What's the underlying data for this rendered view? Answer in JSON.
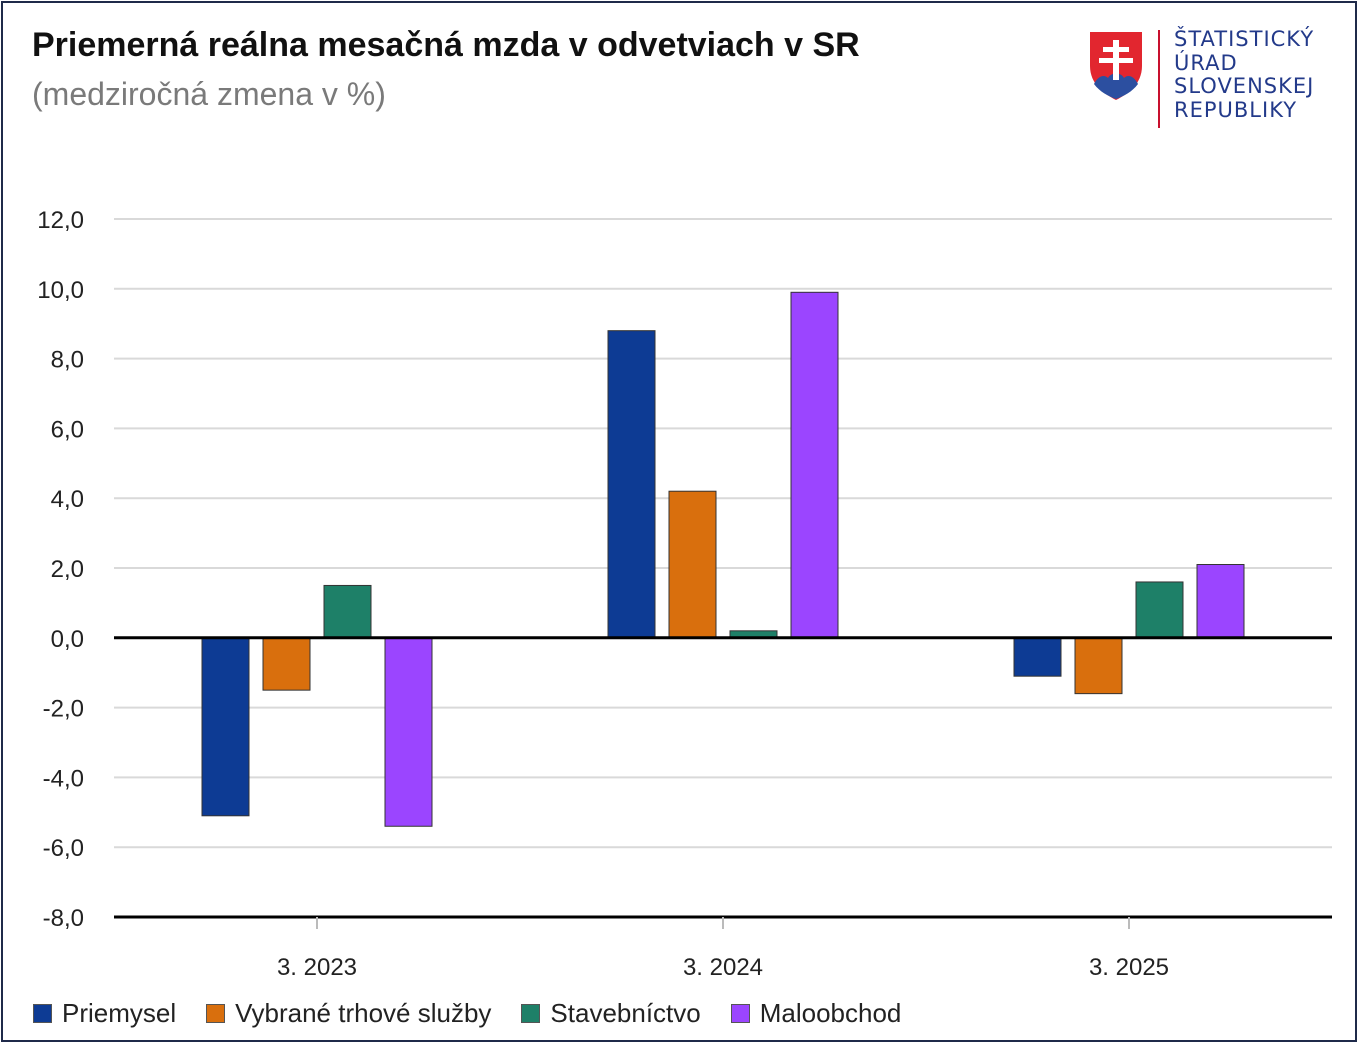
{
  "title": "Priemerná reálna mesačná mzda v odvetviach v SR",
  "subtitle": "(medziročná zmena v %)",
  "logo": {
    "lines": [
      "ŠTATISTICKÝ",
      "ÚRAD",
      "SLOVENSKEJ",
      "REPUBLIKY"
    ],
    "emblem": "slovak-coat-of-arms-icon"
  },
  "colors": {
    "Priemysel": "#0d3b94",
    "Vybrané trhové služby": "#d96f0d",
    "Stavebníctvo": "#1e8068",
    "Maloobchod": "#9b45ff",
    "frame": "#1f2a4a"
  },
  "chart_data": {
    "type": "bar",
    "title": "Priemerná reálna mesačná mzda v odvetviach v SR",
    "subtitle": "(medziročná zmena v %)",
    "categories": [
      "3. 2023",
      "3. 2024",
      "3. 2025"
    ],
    "series": [
      {
        "name": "Priemysel",
        "values": [
          -5.1,
          8.8,
          -1.1
        ]
      },
      {
        "name": "Vybrané trhové služby",
        "values": [
          -1.5,
          4.2,
          -1.6
        ]
      },
      {
        "name": "Stavebníctvo",
        "values": [
          1.5,
          0.2,
          1.6
        ]
      },
      {
        "name": "Maloobchod",
        "values": [
          -5.4,
          9.9,
          2.1
        ]
      }
    ],
    "ylim": [
      -8,
      12
    ],
    "yticks": [
      "12,0",
      "10,0",
      "8,0",
      "6,0",
      "4,0",
      "2,0",
      "0,0",
      "-2,0",
      "-4,0",
      "-6,0",
      "-8,0"
    ],
    "ytick_values": [
      12,
      10,
      8,
      6,
      4,
      2,
      0,
      -2,
      -4,
      -6,
      -8
    ],
    "xlabel": "",
    "ylabel": "",
    "grid": true,
    "legend": "bottom"
  }
}
